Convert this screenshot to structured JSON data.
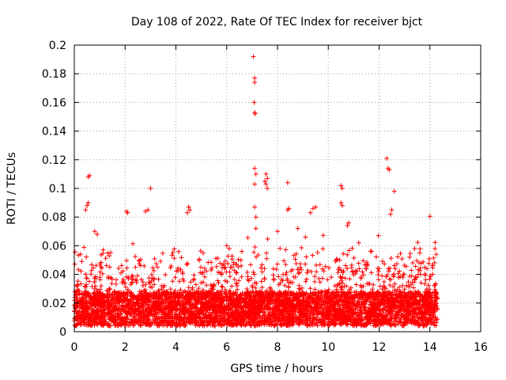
{
  "chart_data": {
    "type": "scatter",
    "title": "Day 108 of 2022, Rate Of TEC Index for receiver bjct",
    "xlabel": "GPS time / hours",
    "ylabel": "ROTI / TECUs",
    "xlim": [
      0,
      16
    ],
    "ylim": [
      0,
      0.2
    ],
    "xticks": [
      "0",
      "2",
      "4",
      "6",
      "8",
      "10",
      "12",
      "14",
      "16"
    ],
    "yticks": [
      "0",
      "0.02",
      "0.04",
      "0.06",
      "0.08",
      "0.1",
      "0.12",
      "0.14",
      "0.16",
      "0.18",
      "0.2"
    ],
    "grid": true,
    "marker": "plus",
    "color": "#ff0000",
    "data_end_hour": 14.3,
    "series": [
      {
        "name": "ROTI",
        "points": [
          [
            0.55,
            0.108
          ],
          [
            0.6,
            0.109
          ],
          [
            0.55,
            0.09
          ],
          [
            0.5,
            0.088
          ],
          [
            0.45,
            0.085
          ],
          [
            0.8,
            0.07
          ],
          [
            0.9,
            0.068
          ],
          [
            3.0,
            0.1
          ],
          [
            2.8,
            0.084
          ],
          [
            2.9,
            0.085
          ],
          [
            2.05,
            0.084
          ],
          [
            2.1,
            0.083
          ],
          [
            4.5,
            0.087
          ],
          [
            4.55,
            0.085
          ],
          [
            4.45,
            0.083
          ],
          [
            7.05,
            0.192
          ],
          [
            7.1,
            0.177
          ],
          [
            7.1,
            0.174
          ],
          [
            7.08,
            0.16
          ],
          [
            7.1,
            0.153
          ],
          [
            7.12,
            0.152
          ],
          [
            7.1,
            0.114
          ],
          [
            7.15,
            0.11
          ],
          [
            7.1,
            0.103
          ],
          [
            7.1,
            0.087
          ],
          [
            7.15,
            0.08
          ],
          [
            7.15,
            0.072
          ],
          [
            7.55,
            0.11
          ],
          [
            7.6,
            0.107
          ],
          [
            7.5,
            0.105
          ],
          [
            7.55,
            0.103
          ],
          [
            7.6,
            0.1
          ],
          [
            8.4,
            0.104
          ],
          [
            8.45,
            0.086
          ],
          [
            8.4,
            0.085
          ],
          [
            9.4,
            0.086
          ],
          [
            9.5,
            0.087
          ],
          [
            9.3,
            0.083
          ],
          [
            10.5,
            0.102
          ],
          [
            10.55,
            0.1
          ],
          [
            10.5,
            0.09
          ],
          [
            10.55,
            0.088
          ],
          [
            10.8,
            0.076
          ],
          [
            10.75,
            0.074
          ],
          [
            12.3,
            0.121
          ],
          [
            12.35,
            0.114
          ],
          [
            12.4,
            0.113
          ],
          [
            12.6,
            0.098
          ],
          [
            12.5,
            0.085
          ],
          [
            12.45,
            0.082
          ],
          [
            6.0,
            0.06
          ],
          [
            6.1,
            0.058
          ],
          [
            5.8,
            0.04
          ],
          [
            5.5,
            0.033
          ],
          [
            5.4,
            0.03
          ],
          [
            13.2,
            0.052
          ],
          [
            13.4,
            0.058
          ],
          [
            13.6,
            0.055
          ],
          [
            14.2,
            0.058
          ],
          [
            14.25,
            0.054
          ],
          [
            8.0,
            0.07
          ],
          [
            8.8,
            0.072
          ],
          [
            9.1,
            0.066
          ],
          [
            11.2,
            0.062
          ],
          [
            11.7,
            0.056
          ]
        ]
      }
    ]
  }
}
